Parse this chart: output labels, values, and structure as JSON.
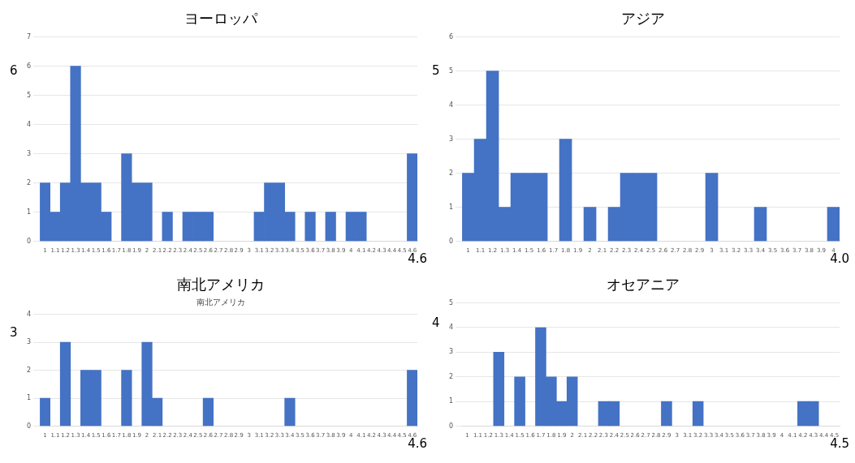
{
  "chart_data": [
    {
      "type": "bar",
      "title": "ヨーロッパ",
      "categories": [
        "1",
        "1.1",
        "1.2",
        "1.3",
        "1.4",
        "1.5",
        "1.6",
        "1.7",
        "1.8",
        "1.9",
        "2",
        "2.1",
        "2.2",
        "2.3",
        "2.4",
        "2.5",
        "2.6",
        "2.7",
        "2.8",
        "2.9",
        "3",
        "3.1",
        "3.2",
        "3.3",
        "3.4",
        "3.5",
        "3.6",
        "3.7",
        "3.8",
        "3.9",
        "4",
        "4.1",
        "4.2",
        "4.3",
        "4.4",
        "4.5",
        "4.6"
      ],
      "values": [
        2,
        1,
        2,
        6,
        2,
        2,
        1,
        0,
        3,
        2,
        2,
        0,
        1,
        0,
        1,
        1,
        1,
        0,
        0,
        0,
        0,
        1,
        2,
        2,
        1,
        0,
        1,
        0,
        1,
        0,
        1,
        1,
        0,
        0,
        0,
        0,
        3
      ],
      "color": "#4472c4",
      "ylim": [
        0,
        7
      ],
      "yticks": [
        0,
        1,
        2,
        3,
        4,
        5,
        6,
        7
      ],
      "grid": "y",
      "annotations": [
        "6",
        "4.6"
      ]
    },
    {
      "type": "bar",
      "title": "アジア",
      "categories": [
        "1",
        "1.1",
        "1.2",
        "1.3",
        "1.4",
        "1.5",
        "1.6",
        "1.7",
        "1.8",
        "1.9",
        "2",
        "2.1",
        "2.2",
        "2.3",
        "2.4",
        "2.5",
        "2.6",
        "2.7",
        "2.8",
        "2.9",
        "3",
        "3.1",
        "3.2",
        "3.3",
        "3.4",
        "3.5",
        "3.6",
        "3.7",
        "3.8",
        "3.9",
        "4"
      ],
      "values": [
        2,
        3,
        5,
        1,
        2,
        2,
        2,
        0,
        3,
        0,
        1,
        0,
        1,
        2,
        2,
        2,
        0,
        0,
        0,
        0,
        2,
        0,
        0,
        0,
        1,
        0,
        0,
        0,
        0,
        0,
        1
      ],
      "color": "#4472c4",
      "ylim": [
        0,
        6
      ],
      "yticks": [
        0,
        1,
        2,
        3,
        4,
        5,
        6
      ],
      "grid": "y",
      "annotations": [
        "5",
        "4.0"
      ]
    },
    {
      "type": "bar",
      "title": "南北アメリカ",
      "subtitle": "南北アメリカ",
      "categories": [
        "1",
        "1.1",
        "1.2",
        "1.3",
        "1.4",
        "1.5",
        "1.6",
        "1.7",
        "1.8",
        "1.9",
        "2",
        "2.1",
        "2.2",
        "2.3",
        "2.4",
        "2.5",
        "2.6",
        "2.7",
        "2.8",
        "2.9",
        "3",
        "3.1",
        "3.2",
        "3.3",
        "3.4",
        "3.5",
        "3.6",
        "3.7",
        "3.8",
        "3.9",
        "4",
        "4.1",
        "4.2",
        "4.3",
        "4.4",
        "4.5",
        "4.6"
      ],
      "values": [
        1,
        0,
        3,
        0,
        2,
        2,
        0,
        0,
        2,
        0,
        3,
        1,
        0,
        0,
        0,
        0,
        1,
        0,
        0,
        0,
        0,
        0,
        0,
        0,
        1,
        0,
        0,
        0,
        0,
        0,
        0,
        0,
        0,
        0,
        0,
        0,
        2
      ],
      "color": "#4472c4",
      "ylim": [
        0,
        4
      ],
      "yticks": [
        0,
        1,
        2,
        3,
        4
      ],
      "grid": "y",
      "annotations": [
        "3",
        "4.6"
      ]
    },
    {
      "type": "bar",
      "title": "オセアニア",
      "categories": [
        "1",
        "1.1",
        "1.2",
        "1.3",
        "1.4",
        "1.5",
        "1.6",
        "1.7",
        "1.8",
        "1.9",
        "2",
        "2.1",
        "2.2",
        "2.3",
        "2.4",
        "2.5",
        "2.6",
        "2.7",
        "2.8",
        "2.9",
        "3",
        "3.1",
        "3.2",
        "3.3",
        "3.4",
        "3.5",
        "3.6",
        "3.7",
        "3.8",
        "3.9",
        "4",
        "4.1",
        "4.2",
        "4.3",
        "4.4",
        "4.5"
      ],
      "values": [
        0,
        0,
        0,
        3,
        0,
        2,
        0,
        4,
        2,
        1,
        2,
        0,
        0,
        1,
        1,
        0,
        0,
        0,
        0,
        1,
        0,
        0,
        1,
        0,
        0,
        0,
        0,
        0,
        0,
        0,
        0,
        0,
        1,
        1,
        0,
        0
      ],
      "color": "#4472c4",
      "ylim": [
        0,
        5
      ],
      "yticks": [
        0,
        1,
        2,
        3,
        4,
        5
      ],
      "grid": "y",
      "annotations": [
        "4",
        "4.5"
      ]
    }
  ]
}
